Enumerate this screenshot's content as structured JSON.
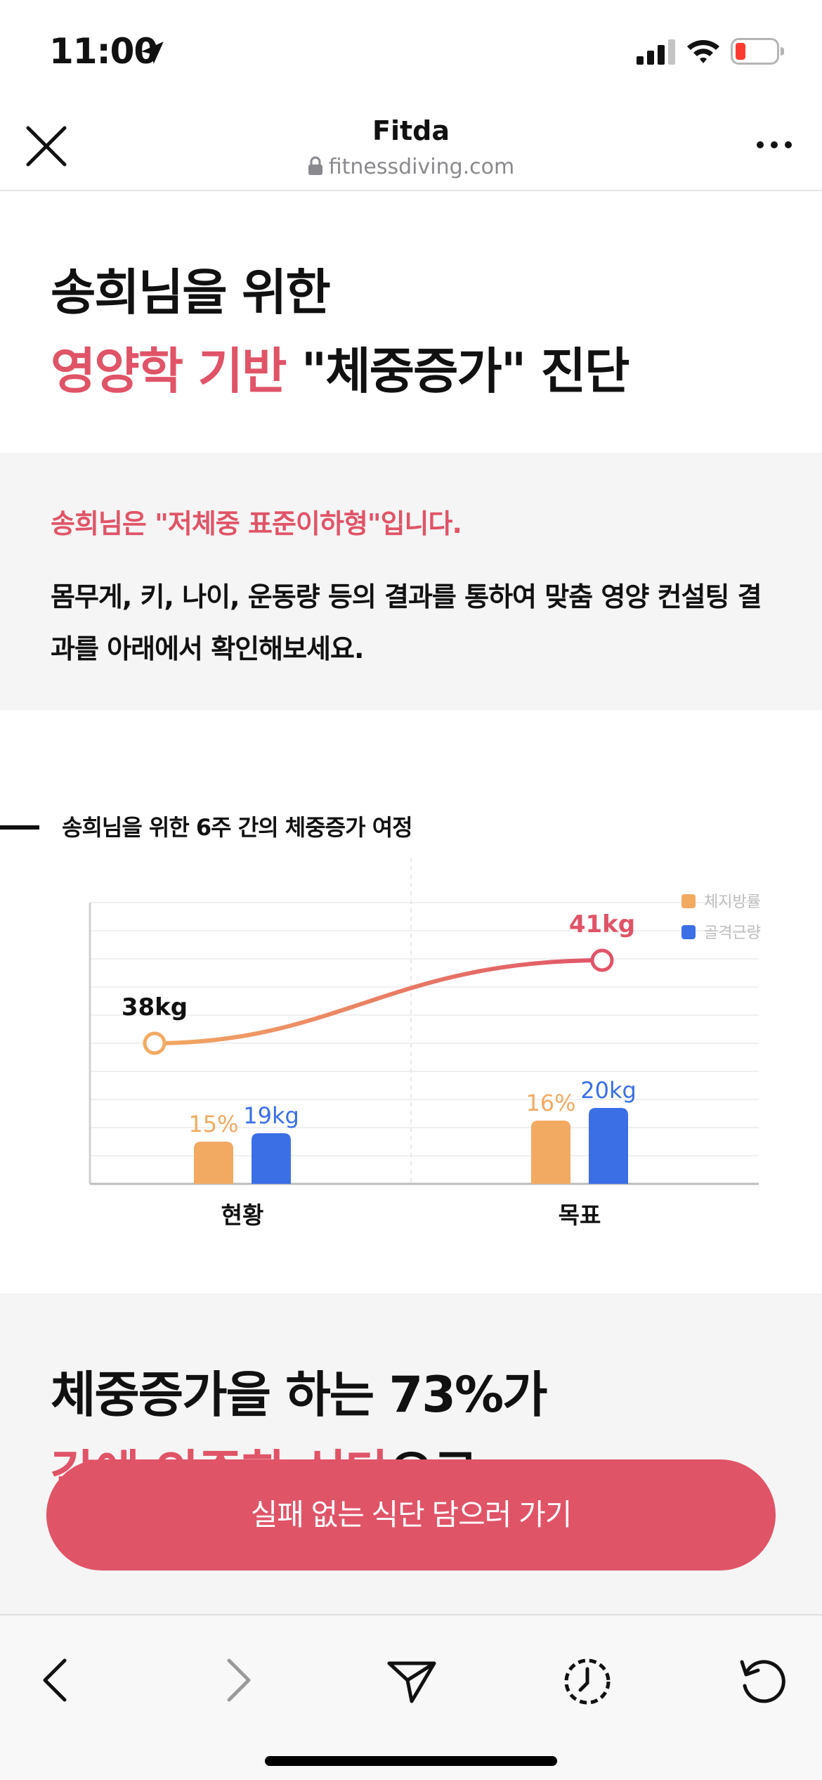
{
  "status_bar": {
    "time": "11:00"
  },
  "browser": {
    "title": "Fitda",
    "url": "fitnessdiving.com"
  },
  "intro": {
    "line1": "송희님을 위한",
    "line2_accent": "영양학 기반",
    "line2_rest": " \"체중증가\" 진단"
  },
  "diagnosis": {
    "headline": "송희님은 \"저체중 표준이하형\"입니다.",
    "body": "몸무게, 키, 나이, 운동량 등의 결과를 통하여 맞춤 영양 컨설팅 결과를 아래에서 확인해보세요."
  },
  "chart_section": {
    "title": "송희님을 위한 6주 간의 체중증가 여정"
  },
  "chart_data": {
    "type": "bar",
    "categories": [
      "현황",
      "목표"
    ],
    "series": [
      {
        "name": "체지방률",
        "values": [
          15,
          16
        ],
        "labels": [
          "15%",
          "16%"
        ],
        "color": "#f2aa62"
      },
      {
        "name": "골격근량",
        "values": [
          19,
          20
        ],
        "labels": [
          "19kg",
          "20kg"
        ],
        "color": "#3b6fe6"
      }
    ],
    "line": {
      "values": [
        38,
        41
      ],
      "labels": [
        "38kg",
        "41kg"
      ],
      "color_start": "#f2aa62",
      "color_end": "#e05468"
    },
    "legend_position": "top-right",
    "grid": true
  },
  "teaser": {
    "line1": "체중증가을 하는 73%가",
    "line2_accent": "감에 의존한 식단",
    "line2_rest": "으로"
  },
  "cta": {
    "label": "실패 없는 식단 담으러 가기"
  },
  "nav": {
    "icons": [
      "back-icon",
      "forward-icon",
      "share-icon",
      "history-icon",
      "reload-icon"
    ]
  }
}
